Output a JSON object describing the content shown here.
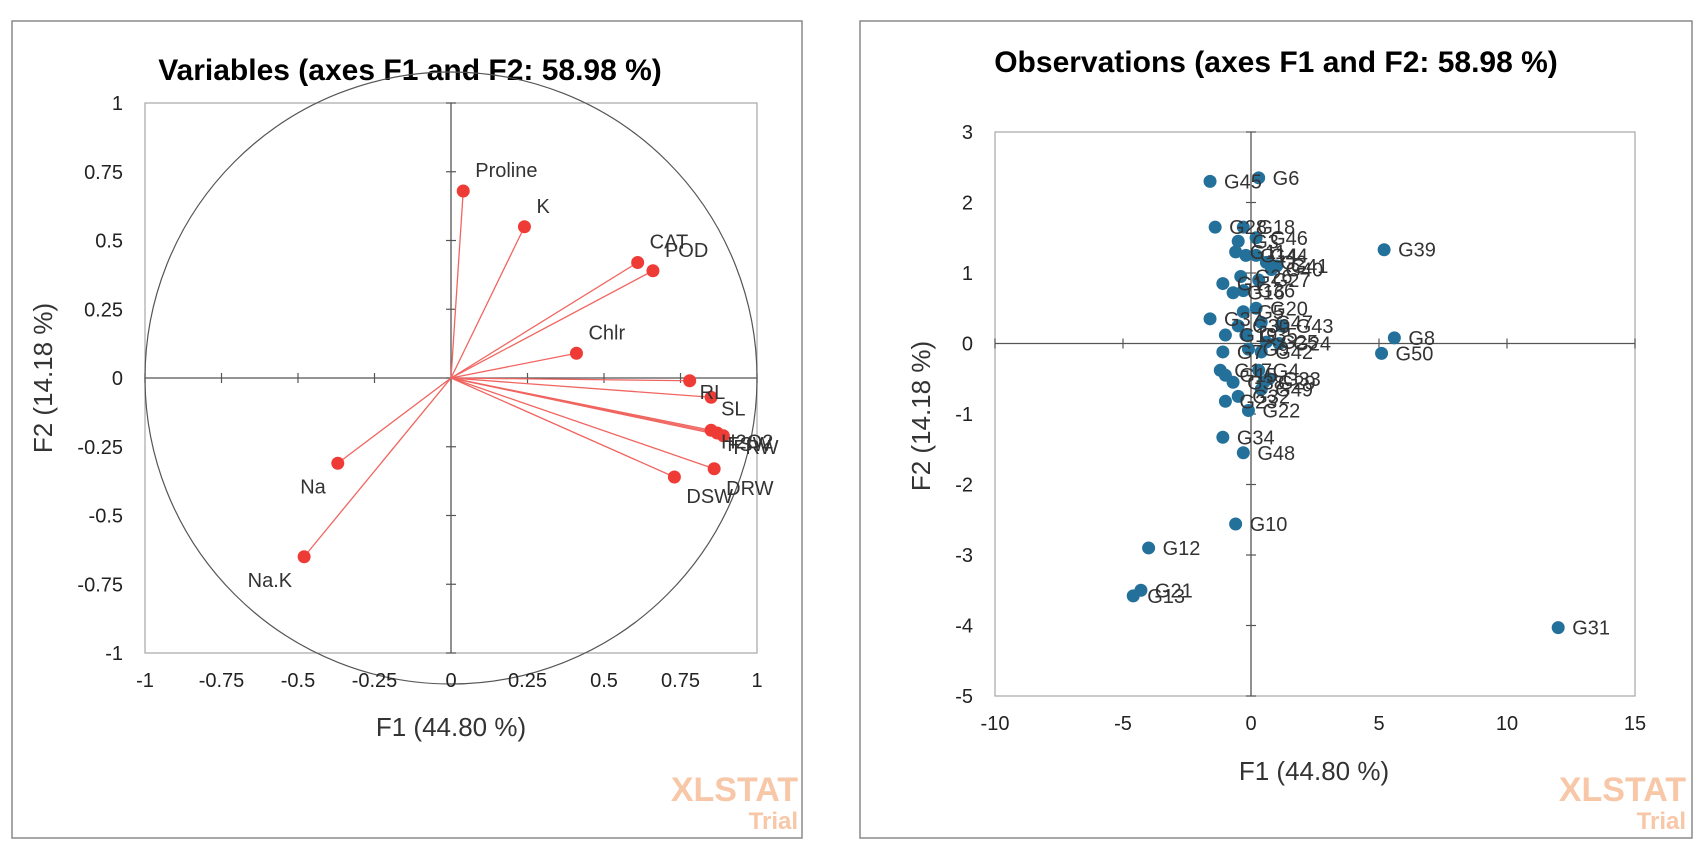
{
  "chart_data": [
    {
      "type": "scatter",
      "subtype": "correlation-circle",
      "title": "Variables (axes F1 and F2: 58.98 %)",
      "xlabel": "F1 (44.80 %)",
      "ylabel": "F2 (14.18 %)",
      "xlim": [
        -1,
        1
      ],
      "ylim": [
        -1,
        1
      ],
      "xticks": [
        "-1",
        "-0.75",
        "-0.5",
        "-0.25",
        "0",
        "0.25",
        "0.5",
        "0.75",
        "1"
      ],
      "yticks": [
        "1",
        "0.75",
        "0.5",
        "0.25",
        "0",
        "-0.25",
        "-0.5",
        "-0.75",
        "-1"
      ],
      "color": "#ef3b36",
      "points": [
        {
          "name": "Proline",
          "x": 0.04,
          "y": 0.68
        },
        {
          "name": "K",
          "x": 0.24,
          "y": 0.55
        },
        {
          "name": "CAT",
          "x": 0.61,
          "y": 0.42
        },
        {
          "name": "POD",
          "x": 0.66,
          "y": 0.39
        },
        {
          "name": "Chlr",
          "x": 0.41,
          "y": 0.09
        },
        {
          "name": "RL",
          "x": 0.78,
          "y": -0.01
        },
        {
          "name": "SL",
          "x": 0.85,
          "y": -0.07
        },
        {
          "name": "H2O2",
          "x": 0.85,
          "y": -0.19
        },
        {
          "name": "FSW",
          "x": 0.87,
          "y": -0.2
        },
        {
          "name": "FRW",
          "x": 0.89,
          "y": -0.21
        },
        {
          "name": "DRW",
          "x": 0.86,
          "y": -0.33
        },
        {
          "name": "DSW",
          "x": 0.73,
          "y": -0.36
        },
        {
          "name": "Na",
          "x": -0.37,
          "y": -0.31
        },
        {
          "name": "Na.K",
          "x": -0.48,
          "y": -0.65
        }
      ],
      "watermark": {
        "line1": "XLSTAT",
        "line2": "Trial"
      }
    },
    {
      "type": "scatter",
      "title": "Observations (axes F1 and F2: 58.98 %)",
      "xlabel": "F1 (44.80 %)",
      "ylabel": "F2 (14.18 %)",
      "xlim": [
        -10,
        15
      ],
      "ylim": [
        -5,
        3
      ],
      "xticks": [
        "-10",
        "-5",
        "0",
        "5",
        "10",
        "15"
      ],
      "yticks": [
        "3",
        "2",
        "1",
        "0",
        "-1",
        "-2",
        "-3",
        "-4",
        "-5"
      ],
      "color": "#23709a",
      "points": [
        {
          "name": "G45",
          "x": -1.6,
          "y": 2.3
        },
        {
          "name": "G6",
          "x": 0.3,
          "y": 2.35
        },
        {
          "name": "G28",
          "x": -1.4,
          "y": 1.65
        },
        {
          "name": "G18",
          "x": -0.3,
          "y": 1.65
        },
        {
          "name": "G46",
          "x": 0.2,
          "y": 1.5
        },
        {
          "name": "G39",
          "x": 5.2,
          "y": 1.33
        },
        {
          "name": "G3",
          "x": -0.5,
          "y": 1.45
        },
        {
          "name": "G14",
          "x": -0.2,
          "y": 1.25
        },
        {
          "name": "G44",
          "x": 0.2,
          "y": 1.25
        },
        {
          "name": "G2",
          "x": 0.6,
          "y": 1.15
        },
        {
          "name": "G41",
          "x": 1.0,
          "y": 1.1
        },
        {
          "name": "G40",
          "x": 0.8,
          "y": 1.05
        },
        {
          "name": "G11",
          "x": -0.6,
          "y": 1.3
        },
        {
          "name": "G26",
          "x": -0.4,
          "y": 0.95
        },
        {
          "name": "G27",
          "x": 0.3,
          "y": 0.9
        },
        {
          "name": "G36",
          "x": -0.3,
          "y": 0.75
        },
        {
          "name": "G1",
          "x": -1.1,
          "y": 0.85
        },
        {
          "name": "G16",
          "x": -0.7,
          "y": 0.72
        },
        {
          "name": "G20",
          "x": 0.2,
          "y": 0.5
        },
        {
          "name": "G5",
          "x": -0.3,
          "y": 0.45
        },
        {
          "name": "G37",
          "x": -1.6,
          "y": 0.35
        },
        {
          "name": "G47",
          "x": 0.4,
          "y": 0.3
        },
        {
          "name": "G43",
          "x": 1.2,
          "y": 0.25
        },
        {
          "name": "G30",
          "x": -0.5,
          "y": 0.25
        },
        {
          "name": "G19",
          "x": -1.0,
          "y": 0.12
        },
        {
          "name": "G35",
          "x": -0.2,
          "y": 0.12
        },
        {
          "name": "G25",
          "x": 0.6,
          "y": 0.02
        },
        {
          "name": "G24",
          "x": 1.1,
          "y": 0.0
        },
        {
          "name": "G8",
          "x": 5.6,
          "y": 0.08
        },
        {
          "name": "G50",
          "x": 5.1,
          "y": -0.14
        },
        {
          "name": "G9",
          "x": -0.1,
          "y": -0.08
        },
        {
          "name": "G42",
          "x": 0.4,
          "y": -0.12
        },
        {
          "name": "G7",
          "x": -1.1,
          "y": -0.12
        },
        {
          "name": "G17",
          "x": -1.2,
          "y": -0.38
        },
        {
          "name": "G4",
          "x": 0.3,
          "y": -0.38
        },
        {
          "name": "G15",
          "x": -1.0,
          "y": -0.45
        },
        {
          "name": "G33",
          "x": 0.7,
          "y": -0.5
        },
        {
          "name": "G38",
          "x": -0.7,
          "y": -0.55
        },
        {
          "name": "G29",
          "x": 0.5,
          "y": -0.55
        },
        {
          "name": "G49",
          "x": 0.4,
          "y": -0.65
        },
        {
          "name": "G32",
          "x": -0.5,
          "y": -0.75
        },
        {
          "name": "G23",
          "x": -1.0,
          "y": -0.82
        },
        {
          "name": "G22",
          "x": -0.1,
          "y": -0.95
        },
        {
          "name": "G34",
          "x": -1.1,
          "y": -1.33
        },
        {
          "name": "G48",
          "x": -0.3,
          "y": -1.55
        },
        {
          "name": "G10",
          "x": -0.6,
          "y": -2.56
        },
        {
          "name": "G12",
          "x": -4.0,
          "y": -2.9
        },
        {
          "name": "G21",
          "x": -4.3,
          "y": -3.5
        },
        {
          "name": "G13",
          "x": -4.6,
          "y": -3.58
        },
        {
          "name": "G31",
          "x": 12.0,
          "y": -4.03
        }
      ],
      "watermark": {
        "line1": "XLSTAT",
        "line2": "Trial"
      }
    }
  ]
}
